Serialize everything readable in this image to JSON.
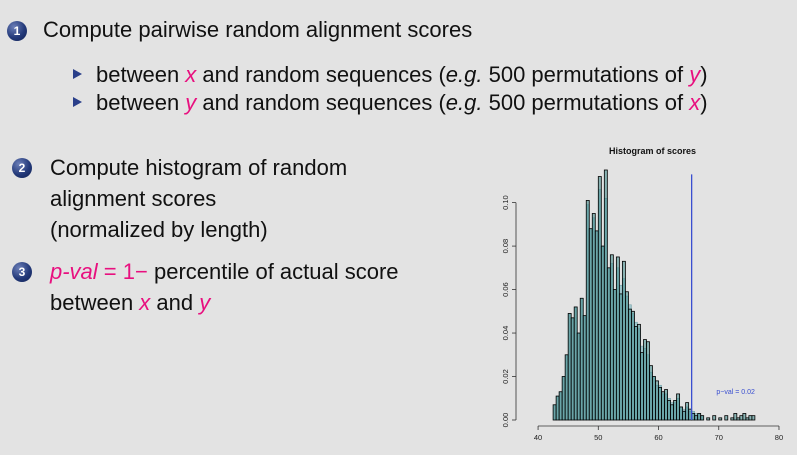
{
  "step1": {
    "num": "1",
    "text": "Compute pairwise random alignment scores",
    "bullets": [
      {
        "pre": "between ",
        "v1": "x",
        "mid": " and random sequences (",
        "eg": "e.g.",
        "post": " 500 permutations of ",
        "v2": "y",
        "end": ")"
      },
      {
        "pre": "between ",
        "v1": "y",
        "mid": " and random sequences (",
        "eg": "e.g.",
        "post": " 500 permutations of ",
        "v2": "x",
        "end": ")"
      }
    ]
  },
  "step2": {
    "num": "2",
    "lines": [
      "Compute histogram of random",
      "alignment scores",
      "(normalized by length)"
    ]
  },
  "step3": {
    "num": "3",
    "pval_label": "p-val",
    "formula": " = 1− ",
    "text_rest": "percentile of actual score",
    "line2_pre": "between ",
    "v1": "x",
    "and": " and ",
    "v2": "y"
  },
  "chart_data": {
    "type": "bar",
    "title": "Histogram of scores",
    "xticks": [
      40,
      50,
      60,
      70,
      80
    ],
    "yticks": [
      "0.00",
      "0.02",
      "0.04",
      "0.06",
      "0.08",
      "0.10"
    ],
    "xlim": [
      37,
      81
    ],
    "ylim": [
      0,
      0.115
    ],
    "bin_width": 0.5,
    "series": [
      {
        "values": [
          [
            42.5,
            0.007
          ],
          [
            43.0,
            0.011
          ],
          [
            43.5,
            0.013
          ],
          [
            44.0,
            0.02
          ],
          [
            44.5,
            0.03
          ],
          [
            45.0,
            0.049
          ],
          [
            45.5,
            0.047
          ],
          [
            46.0,
            0.052
          ],
          [
            46.5,
            0.04
          ],
          [
            47.0,
            0.056
          ],
          [
            47.5,
            0.048
          ],
          [
            48.0,
            0.101
          ],
          [
            48.5,
            0.088
          ],
          [
            49.0,
            0.095
          ],
          [
            49.5,
            0.087
          ],
          [
            50.0,
            0.112
          ],
          [
            50.5,
            0.08
          ],
          [
            51.0,
            0.115
          ],
          [
            51.5,
            0.07
          ],
          [
            52.0,
            0.076
          ],
          [
            52.5,
            0.06
          ],
          [
            53.0,
            0.075
          ],
          [
            53.5,
            0.058
          ],
          [
            54.0,
            0.073
          ],
          [
            54.5,
            0.059
          ],
          [
            55.0,
            0.051
          ],
          [
            55.5,
            0.05
          ],
          [
            56.0,
            0.043
          ],
          [
            56.5,
            0.044
          ],
          [
            57.0,
            0.031
          ],
          [
            57.5,
            0.037
          ],
          [
            58.0,
            0.036
          ],
          [
            58.5,
            0.025
          ],
          [
            59.0,
            0.02
          ],
          [
            59.5,
            0.018
          ],
          [
            60.0,
            0.015
          ],
          [
            60.5,
            0.013
          ],
          [
            61.0,
            0.014
          ],
          [
            61.5,
            0.009
          ],
          [
            62.0,
            0.007
          ],
          [
            62.5,
            0.009
          ],
          [
            63.0,
            0.012
          ],
          [
            63.5,
            0.006
          ],
          [
            64.0,
            0.004
          ],
          [
            64.5,
            0.008
          ],
          [
            65.0,
            0.005
          ],
          [
            65.5,
            0.003
          ],
          [
            66.0,
            0.002
          ],
          [
            66.5,
            0.003
          ],
          [
            67.0,
            0.002
          ],
          [
            68.0,
            0.001
          ],
          [
            69.0,
            0.002
          ],
          [
            70.0,
            0.001
          ],
          [
            71.0,
            0.002
          ],
          [
            72.0,
            0.001
          ],
          [
            72.5,
            0.003
          ],
          [
            73.0,
            0.001
          ],
          [
            73.5,
            0.002
          ],
          [
            74.0,
            0.003
          ],
          [
            74.5,
            0.001
          ],
          [
            75.0,
            0.002
          ],
          [
            75.5,
            0.002
          ]
        ]
      },
      {
        "values": [
          [
            42.5,
            0.007
          ],
          [
            43.0,
            0.011
          ],
          [
            43.5,
            0.013
          ],
          [
            44.0,
            0.02
          ],
          [
            44.5,
            0.03
          ],
          [
            45.0,
            0.049
          ],
          [
            45.5,
            0.047
          ],
          [
            46.0,
            0.052
          ],
          [
            46.5,
            0.04
          ],
          [
            47.0,
            0.056
          ],
          [
            47.5,
            0.048
          ],
          [
            48.0,
            0.099
          ],
          [
            48.5,
            0.088
          ],
          [
            49.0,
            0.093
          ],
          [
            49.5,
            0.087
          ],
          [
            50.0,
            0.106
          ],
          [
            50.5,
            0.08
          ],
          [
            51.0,
            0.102
          ],
          [
            51.5,
            0.07
          ],
          [
            52.0,
            0.072
          ],
          [
            52.5,
            0.06
          ],
          [
            53.0,
            0.07
          ],
          [
            53.5,
            0.062
          ],
          [
            54.0,
            0.065
          ],
          [
            54.5,
            0.057
          ],
          [
            55.0,
            0.053
          ],
          [
            55.5,
            0.049
          ],
          [
            56.0,
            0.045
          ],
          [
            56.5,
            0.042
          ],
          [
            57.0,
            0.034
          ],
          [
            57.5,
            0.033
          ],
          [
            58.0,
            0.03
          ],
          [
            58.5,
            0.022
          ],
          [
            59.0,
            0.02
          ],
          [
            59.5,
            0.016
          ],
          [
            60.0,
            0.016
          ],
          [
            60.5,
            0.012
          ],
          [
            61.0,
            0.012
          ],
          [
            61.5,
            0.01
          ],
          [
            62.0,
            0.008
          ],
          [
            62.5,
            0.008
          ],
          [
            63.0,
            0.01
          ],
          [
            63.5,
            0.006
          ],
          [
            64.0,
            0.005
          ],
          [
            64.5,
            0.006
          ],
          [
            65.0,
            0.004
          ],
          [
            65.5,
            0.004
          ],
          [
            66.0,
            0.003
          ],
          [
            66.5,
            0.003
          ],
          [
            67.0,
            0.002
          ]
        ]
      }
    ],
    "vline_x": 65.5,
    "annotation": "p−val = 0.02",
    "colors": {
      "series1_stroke": "#000000",
      "series1_fill": "#3e8a8a",
      "series2_fill": "#9fc6cc",
      "vline": "#3a4fd0",
      "annotation": "#3a4fd0"
    }
  }
}
